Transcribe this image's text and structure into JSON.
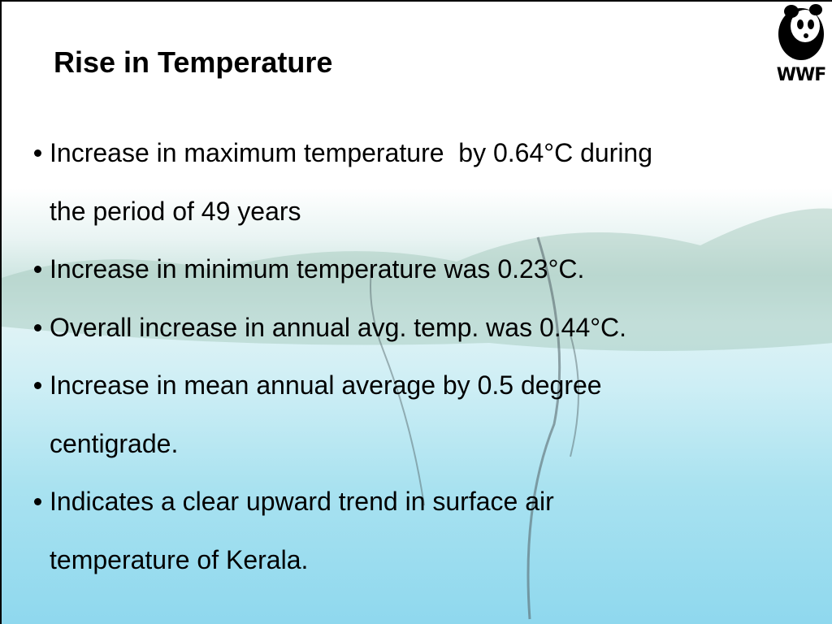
{
  "title": "Rise in Temperature",
  "logo": {
    "text": "WWF"
  },
  "bullets": [
    {
      "lines": [
        "Increase in maximum temperature  by 0.64°C during",
        "the period of 49 years"
      ]
    },
    {
      "lines": [
        "Increase in minimum temperature was 0.23°C."
      ]
    },
    {
      "lines": [
        "Overall increase in annual avg. temp. was 0.44°C."
      ]
    },
    {
      "lines": [
        "Increase in mean annual average by 0.5 degree",
        "centigrade."
      ]
    },
    {
      "lines": [
        "Indicates a clear upward trend in surface air",
        "temperature of Kerala."
      ]
    }
  ]
}
